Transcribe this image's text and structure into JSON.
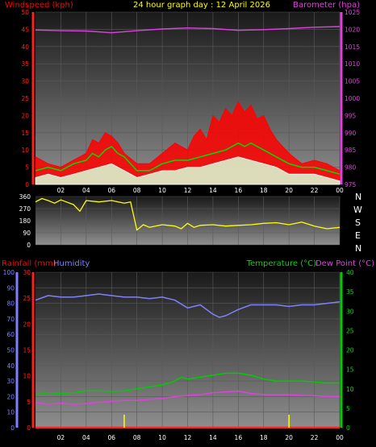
{
  "header": {
    "left_title": "Windspeed (kph)",
    "center_title": "24 hour graph day : 12 April 2026",
    "right_title": "Barometer (hpa)"
  },
  "compass_letters": [
    "N",
    "W",
    "S",
    "E",
    "N"
  ],
  "bottom_headers": {
    "rainfall": "Rainfall (mm)",
    "humidity": "Humidity",
    "temperature": "Temperature (°C)",
    "dewpoint": "Dew Point (°C)"
  },
  "colors": {
    "wind_max": "#ff0000",
    "wind_avg": "#ffffff",
    "wind_trend": "#00dd00",
    "barometer": "#e040e0",
    "direction": "#ffff00",
    "humidity": "#8080ff",
    "temperature": "#00cc00",
    "dewpoint": "#e040e0",
    "rainfall": "#ff2020",
    "rain_rate": "#ffff00"
  },
  "chart_data": [
    {
      "type": "line",
      "name": "wind-barometer",
      "x_ticks": [
        "02",
        "04",
        "06",
        "08",
        "10",
        "12",
        "14",
        "16",
        "18",
        "20",
        "22",
        "00"
      ],
      "y_left": {
        "label": "Windspeed (kph)",
        "ticks": [
          0,
          5,
          10,
          15,
          20,
          25,
          30,
          35,
          40,
          45,
          50
        ],
        "range": [
          0,
          50
        ]
      },
      "y_right": {
        "label": "Barometer (hpa)",
        "ticks": [
          975,
          980,
          985,
          990,
          995,
          1000,
          1005,
          1010,
          1015,
          1020,
          1025
        ],
        "range": [
          975,
          1025
        ]
      },
      "x_range": [
        0,
        24
      ],
      "series": [
        {
          "name": "gust",
          "color": "#ff0000",
          "x": [
            0,
            1,
            2,
            3,
            4,
            4.5,
            5,
            5.5,
            6,
            6.5,
            7,
            8,
            9,
            10,
            11,
            12,
            12.5,
            13,
            13.5,
            14,
            14.5,
            15,
            15.5,
            16,
            16.5,
            17,
            17.5,
            18,
            18.5,
            19,
            20,
            21,
            22,
            23,
            24
          ],
          "y": [
            8,
            6,
            5,
            7,
            9,
            13,
            12,
            15,
            14,
            12,
            9,
            6,
            6,
            9,
            12,
            10,
            14,
            16,
            13,
            20,
            18,
            22,
            20,
            24,
            21,
            23,
            19,
            20,
            16,
            13,
            9,
            6,
            7,
            6,
            4
          ]
        },
        {
          "name": "average",
          "color": "#ffffff",
          "x": [
            0,
            1,
            2,
            3,
            4,
            5,
            6,
            7,
            8,
            9,
            10,
            11,
            12,
            13,
            14,
            15,
            16,
            17,
            18,
            19,
            20,
            21,
            22,
            23,
            24
          ],
          "y": [
            2,
            3,
            2,
            3,
            4,
            5,
            6,
            4,
            2,
            3,
            4,
            4,
            5,
            5,
            6,
            7,
            8,
            7,
            6,
            5,
            3,
            3,
            3,
            2,
            1
          ]
        },
        {
          "name": "trend",
          "color": "#00dd00",
          "x": [
            0,
            1,
            2,
            3,
            4,
            4.5,
            5,
            5.5,
            6,
            6.5,
            7,
            8,
            9,
            10,
            11,
            12,
            13,
            14,
            15,
            16,
            16.5,
            17,
            18,
            19,
            20,
            21,
            22,
            23,
            24
          ],
          "y": [
            4,
            5,
            4,
            6,
            7,
            9,
            8,
            10,
            11,
            9,
            8,
            4,
            4,
            6,
            7,
            7,
            8,
            9,
            10,
            12,
            11,
            12,
            10,
            8,
            6,
            5,
            5,
            4,
            3
          ]
        },
        {
          "name": "barometer",
          "color": "#e040e0",
          "x": [
            0,
            2,
            4,
            6,
            8,
            10,
            12,
            14,
            16,
            18,
            20,
            22,
            24
          ],
          "y": [
            1019.8,
            1019.6,
            1019.5,
            1019.0,
            1019.6,
            1020.1,
            1020.4,
            1020.2,
            1019.7,
            1019.9,
            1020.2,
            1020.6,
            1020.8
          ]
        }
      ]
    },
    {
      "type": "line",
      "name": "wind-direction",
      "x_ticks": [
        "02",
        "04",
        "06",
        "08",
        "10",
        "12",
        "14",
        "16",
        "18",
        "20",
        "22",
        "00"
      ],
      "y_ticks": [
        0,
        90,
        180,
        270,
        360
      ],
      "y_range": [
        0,
        360
      ],
      "x_range": [
        0,
        24
      ],
      "series": [
        {
          "name": "direction",
          "color": "#ffff00",
          "x": [
            0,
            0.5,
            1,
            1.5,
            2,
            3,
            3.5,
            4,
            5,
            6,
            7,
            7.5,
            8,
            8.5,
            9,
            10,
            11,
            11.5,
            12,
            12.5,
            13,
            14,
            15,
            16,
            17,
            18,
            19,
            20,
            21,
            22,
            23,
            24
          ],
          "y": [
            320,
            345,
            330,
            310,
            335,
            300,
            250,
            330,
            320,
            330,
            310,
            320,
            110,
            150,
            130,
            150,
            140,
            120,
            160,
            130,
            145,
            150,
            140,
            145,
            150,
            160,
            165,
            150,
            170,
            140,
            120,
            130
          ]
        }
      ]
    },
    {
      "type": "line",
      "name": "rain-humidity-temperature",
      "x_ticks": [
        "02",
        "04",
        "06",
        "08",
        "10",
        "12",
        "14",
        "16",
        "18",
        "20",
        "22",
        "00"
      ],
      "y_far_left": {
        "label": "Humidity",
        "ticks": [
          0,
          10,
          20,
          30,
          40,
          50,
          60,
          70,
          80,
          90,
          100
        ],
        "range": [
          0,
          100
        ]
      },
      "y_left": {
        "label": "Rainfall (mm)",
        "ticks": [
          0,
          5,
          10,
          15,
          20,
          25,
          30
        ],
        "range": [
          0,
          30
        ]
      },
      "y_right": {
        "label": "Temperature (°C)",
        "ticks": [
          0,
          5,
          10,
          15,
          20,
          25,
          30,
          35,
          40
        ],
        "range": [
          0,
          40
        ]
      },
      "x_range": [
        0,
        24
      ],
      "series": [
        {
          "name": "humidity",
          "color": "#8080ff",
          "x": [
            0,
            1,
            2,
            3,
            4,
            5,
            6,
            7,
            8,
            9,
            10,
            11,
            12,
            13,
            14,
            14.5,
            15,
            16,
            17,
            18,
            19,
            20,
            21,
            22,
            23,
            24
          ],
          "y": [
            82,
            85,
            84,
            84,
            85,
            86,
            85,
            84,
            84,
            83,
            84,
            82,
            77,
            79,
            73,
            71,
            72,
            76,
            79,
            79,
            79,
            78,
            79,
            79,
            80,
            81
          ]
        },
        {
          "name": "temperature",
          "color": "#00cc00",
          "x": [
            0,
            1,
            2,
            3,
            4,
            5,
            6,
            7,
            8,
            9,
            10,
            11,
            11.5,
            12,
            13,
            14,
            15,
            16,
            17,
            18,
            19,
            20,
            21,
            22,
            23,
            24
          ],
          "y": [
            8.5,
            9,
            8.8,
            9,
            9.5,
            9.5,
            9.3,
            9.5,
            10,
            10.5,
            11,
            12,
            13,
            12.5,
            13,
            13.5,
            14,
            14,
            13.5,
            12.5,
            12,
            12,
            12,
            11.8,
            11.5,
            11.5
          ]
        },
        {
          "name": "dewpoint",
          "color": "#e040e0",
          "x": [
            0,
            1,
            2,
            3,
            4,
            5,
            6,
            7,
            8,
            9,
            10,
            11,
            12,
            13,
            14,
            15,
            16,
            17,
            18,
            19,
            20,
            21,
            22,
            23,
            24
          ],
          "y": [
            6.5,
            6,
            6.3,
            6,
            6.2,
            6.5,
            6.8,
            7,
            7,
            7.3,
            7.5,
            8,
            8.3,
            8.5,
            9,
            9.2,
            9.4,
            8.8,
            8.5,
            8.5,
            8.5,
            8.3,
            8.2,
            8,
            8
          ]
        },
        {
          "name": "rainfall",
          "color": "#ff2020",
          "x": [
            0,
            24
          ],
          "y": [
            0,
            0
          ]
        },
        {
          "name": "rain_rate",
          "color": "#ffff00",
          "x": [
            7,
            20
          ],
          "y": [
            2.5,
            2.5
          ]
        }
      ]
    }
  ]
}
